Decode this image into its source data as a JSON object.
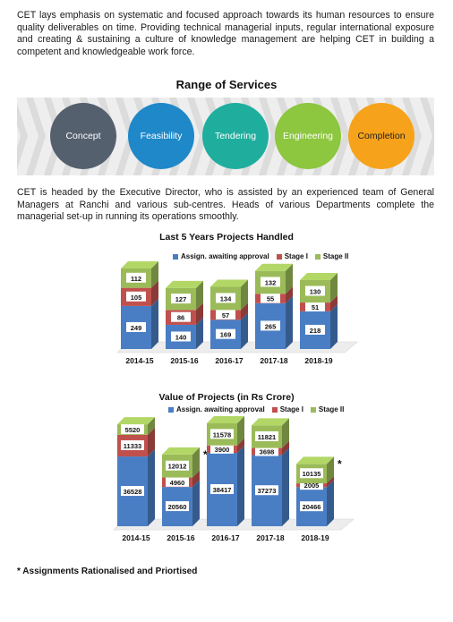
{
  "intro_paragraph": "CET lays emphasis on systematic and focused approach towards its human resources to ensure quality deliverables on time. Providing technical managerial inputs, regular international exposure and creating & sustaining a culture of knowledge management are helping CET in building a competent and knowledgeable work force.",
  "services": {
    "title": "Range of Services",
    "items": [
      {
        "label": "Concept",
        "color": "#55606E"
      },
      {
        "label": "Feasibility",
        "color": "#1F88C9"
      },
      {
        "label": "Tendering",
        "color": "#1FAE9E"
      },
      {
        "label": "Engineering",
        "color": "#8DC63F"
      },
      {
        "label": "Completion",
        "color": "#F7A21B"
      }
    ]
  },
  "org_paragraph": "CET is headed by the Executive Director, who is assisted by an experienced team of General Managers at Ranchi and various sub-centres. Heads of various Departments complete the managerial set-up in running its operations smoothly.",
  "legend": {
    "awaiting": "Assign. awaiting approval",
    "stage1": "Stage I",
    "stage2": "Stage II",
    "colors": {
      "awaiting": "#4A7EC4",
      "stage1": "#C0504D",
      "stage2": "#9BBB59"
    }
  },
  "chart_data": [
    {
      "type": "bar",
      "stacked": true,
      "title": "Last 5 Years Projects Handled",
      "categories": [
        "2014-15",
        "2015-16",
        "2016-17",
        "2017-18",
        "2018-19"
      ],
      "series": [
        {
          "name": "Assign. awaiting approval",
          "values": [
            249,
            140,
            169,
            265,
            218
          ]
        },
        {
          "name": "Stage I",
          "values": [
            105,
            86,
            57,
            55,
            51
          ]
        },
        {
          "name": "Stage II",
          "values": [
            112,
            127,
            134,
            132,
            130
          ]
        }
      ],
      "legend_position": "top-right"
    },
    {
      "type": "bar",
      "stacked": true,
      "title": "Value of Projects (in Rs Crore)",
      "categories": [
        "2014-15",
        "2015-16",
        "2016-17",
        "2017-18",
        "2018-19"
      ],
      "series": [
        {
          "name": "Assign. awaiting approval",
          "values": [
            36528,
            20560,
            38417,
            37273,
            20466
          ]
        },
        {
          "name": "Stage I",
          "values": [
            11333,
            4960,
            3900,
            3698,
            2005
          ]
        },
        {
          "name": "Stage II",
          "values": [
            5520,
            12012,
            11578,
            11821,
            10135
          ]
        }
      ],
      "markers": [
        "",
        "*",
        "",
        "",
        "*"
      ],
      "legend_position": "top-right"
    }
  ],
  "footnote": "* Assignments Rationalised and Priortised"
}
